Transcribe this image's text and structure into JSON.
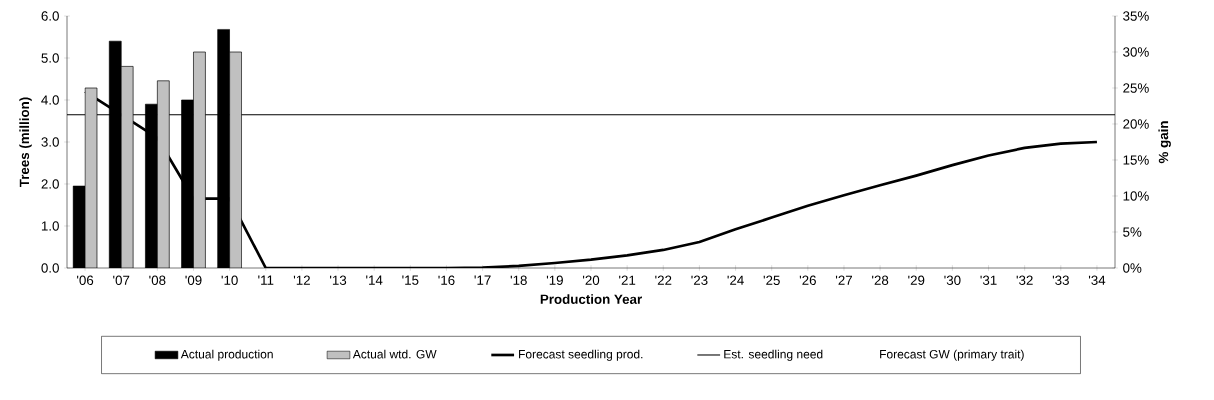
{
  "chart_data": {
    "type": "bar",
    "xlabel": "Production Year",
    "ylabel": "Trees (million)",
    "y2label": "% gain",
    "categories": [
      "'06",
      "'07",
      "'08",
      "'09",
      "'10",
      "'11",
      "'12",
      "'13",
      "'14",
      "'15",
      "'16",
      "'17",
      "'18",
      "'19",
      "'20",
      "'21",
      "'22",
      "'23",
      "'24",
      "'25",
      "'26",
      "'27",
      "'28",
      "'29",
      "'30",
      "'31",
      "'32",
      "'33",
      "'34"
    ],
    "series": [
      {
        "name": "Actual production",
        "color": "#000000",
        "values": [
          1.95,
          5.4,
          3.9,
          4.0,
          5.68,
          null,
          null,
          null,
          null,
          null,
          null,
          null,
          null,
          null,
          null,
          null,
          null,
          null,
          null,
          null,
          null,
          null,
          null,
          null,
          null,
          null,
          null,
          null,
          null
        ]
      },
      {
        "name": "Actual wtd. GW",
        "color": "#c0c0c0",
        "axis": "y2",
        "values": [
          25,
          28,
          26,
          30,
          30,
          null,
          null,
          null,
          null,
          null,
          null,
          null,
          null,
          null,
          null,
          null,
          null,
          null,
          null,
          null,
          null,
          null,
          null,
          null,
          null,
          null,
          null,
          null,
          null
        ]
      },
      {
        "name": "Forecast seedling prod.",
        "type": "line",
        "color": "#000000",
        "values": [
          4.2,
          3.65,
          3.1,
          1.65,
          1.65,
          0,
          0,
          0,
          0,
          0,
          0,
          0.01,
          0.05,
          0.12,
          0.2,
          0.3,
          0.43,
          0.62,
          0.92,
          1.2,
          1.48,
          1.73,
          1.97,
          2.2,
          2.45,
          2.68,
          2.86,
          2.96,
          3.0
        ]
      }
    ],
    "ref_lines": [
      {
        "axis": "y",
        "value": 3.65,
        "label": "Est. seedling need",
        "color": "#000000"
      }
    ],
    "annotations": [
      "Forecast GW (primary trait)"
    ],
    "ylim": [
      0,
      6
    ],
    "yticks": [
      {
        "value": 0,
        "label": "0.0"
      },
      {
        "value": 1,
        "label": "1.0"
      },
      {
        "value": 2,
        "label": "2.0"
      },
      {
        "value": 3,
        "label": "3.0"
      },
      {
        "value": 4,
        "label": "4.0"
      },
      {
        "value": 5,
        "label": "5.0"
      },
      {
        "value": 6,
        "label": "6.0"
      }
    ],
    "y2lim": [
      0,
      35
    ],
    "y2ticks": [
      {
        "value": 0,
        "label": "0%"
      },
      {
        "value": 5,
        "label": "5%"
      },
      {
        "value": 10,
        "label": "10%"
      },
      {
        "value": 15,
        "label": "15%"
      },
      {
        "value": 20,
        "label": "20%"
      },
      {
        "value": 25,
        "label": "25%"
      },
      {
        "value": 30,
        "label": "30%"
      },
      {
        "value": 35,
        "label": "35%"
      }
    ],
    "grid": false,
    "legend": "bottom",
    "marker": "none",
    "line_style": "solid"
  }
}
